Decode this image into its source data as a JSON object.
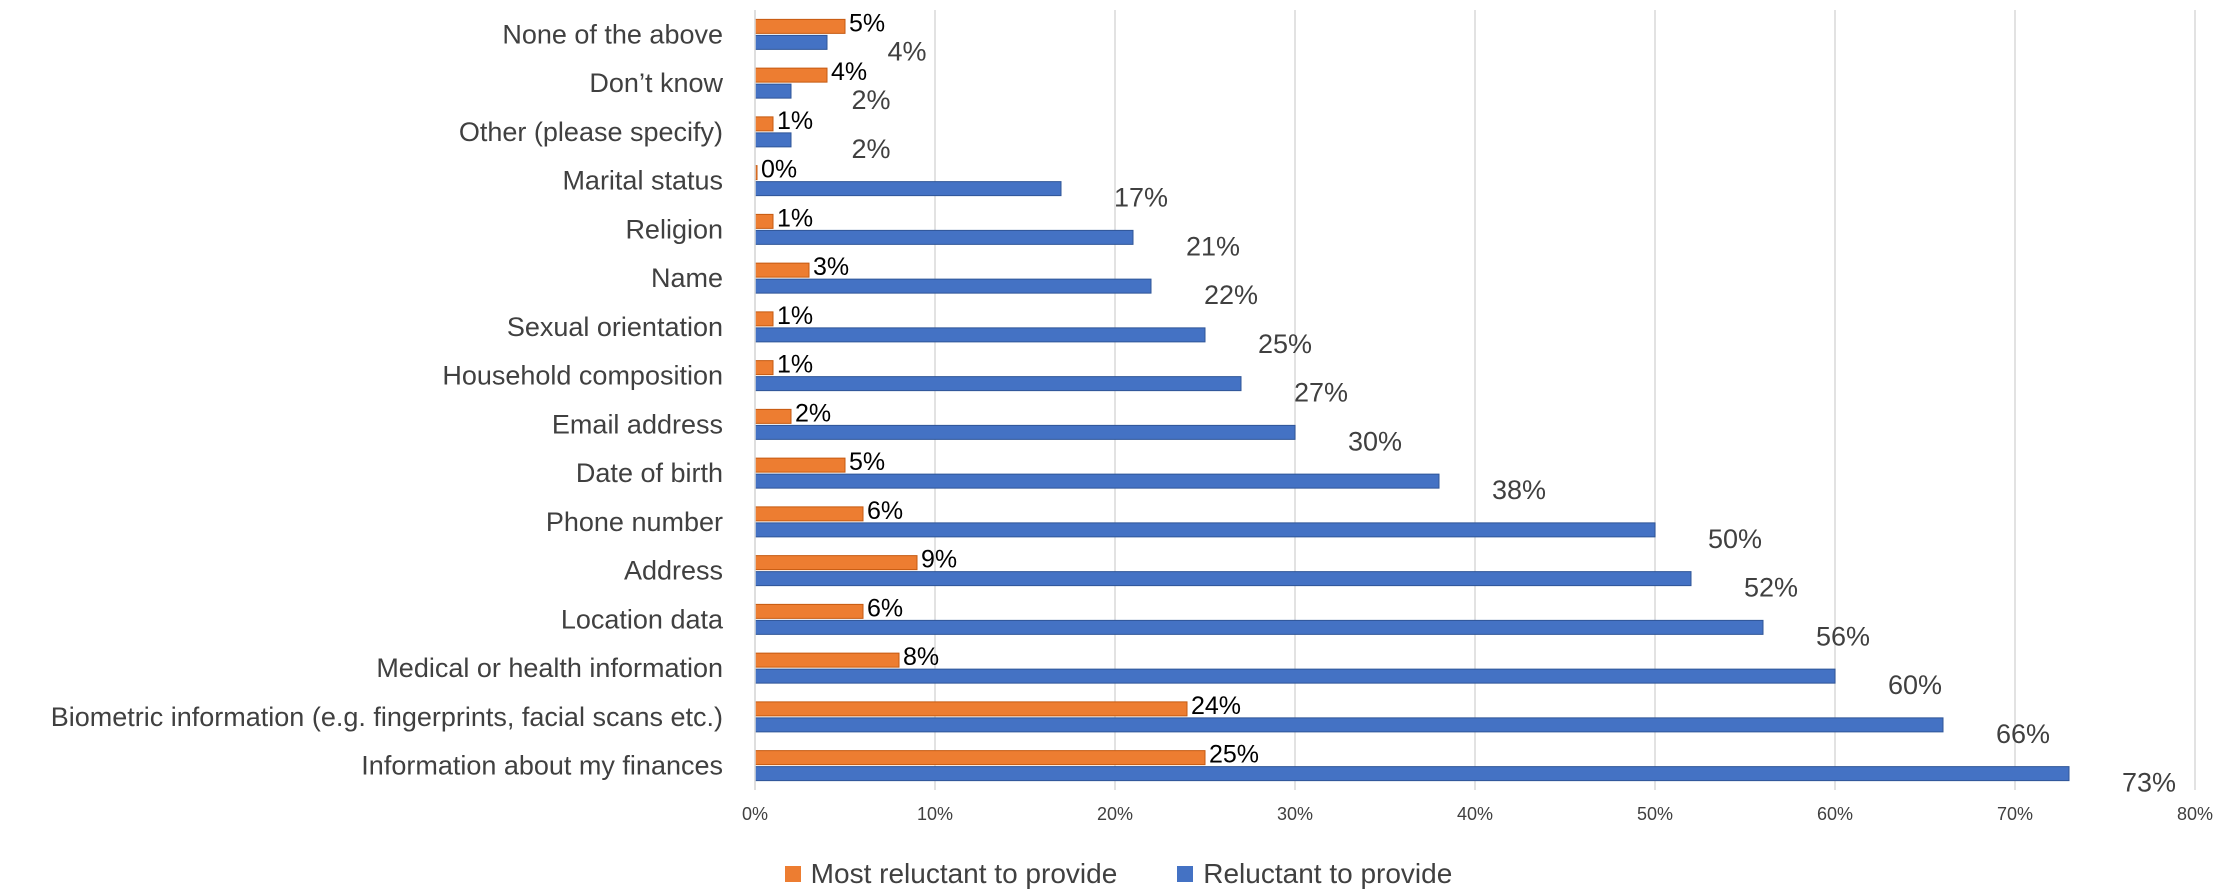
{
  "colors": {
    "most_reluctant": "#ED7D31",
    "reluctant": "#4472C4",
    "grid": "#D9D9D9",
    "text": "#404040"
  },
  "legend": {
    "series_1": "Most reluctant to provide",
    "series_2": "Reluctant to provide"
  },
  "chart_data": {
    "type": "bar",
    "orientation": "horizontal",
    "categories": [
      "None of the above",
      "Don’t know",
      "Other (please specify)",
      "Marital status",
      "Religion",
      "Name",
      "Sexual orientation",
      "Household composition",
      "Email address",
      "Date of birth",
      "Phone number",
      "Address",
      "Location data",
      "Medical or health information",
      "Biometric information (e.g. fingerprints, facial scans etc.)",
      "Information about my finances"
    ],
    "series": [
      {
        "name": "Most reluctant to provide",
        "values": [
          5,
          4,
          1,
          0,
          1,
          3,
          1,
          1,
          2,
          5,
          6,
          9,
          6,
          8,
          24,
          25
        ]
      },
      {
        "name": "Reluctant to provide",
        "values": [
          4,
          2,
          2,
          17,
          21,
          22,
          25,
          27,
          30,
          38,
          50,
          52,
          56,
          60,
          66,
          73
        ]
      }
    ],
    "xlim": [
      0,
      80
    ],
    "x_ticks": [
      "0%",
      "10%",
      "20%",
      "30%",
      "40%",
      "50%",
      "60%",
      "70%",
      "80%"
    ],
    "value_suffix": "%",
    "grid": true,
    "legend_position": "bottom"
  }
}
